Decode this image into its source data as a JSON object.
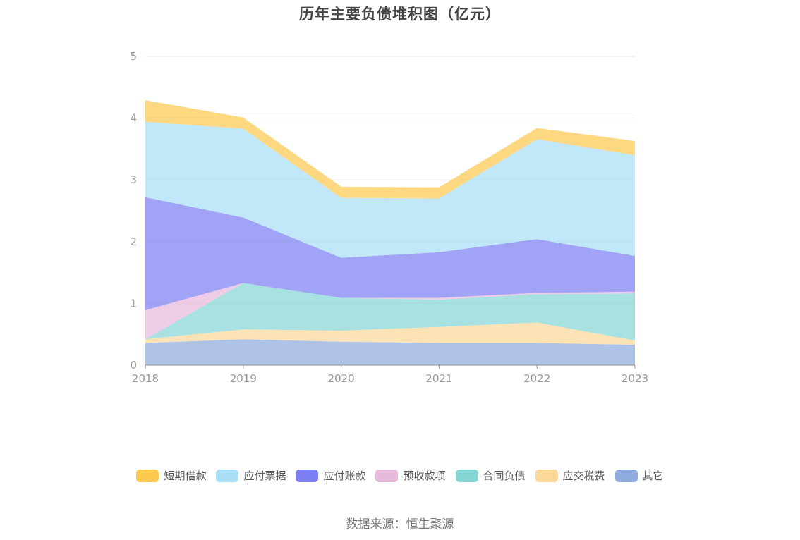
{
  "chart_data": {
    "type": "area",
    "stacked": true,
    "title": "历年主要负债堆积图（亿元）",
    "categories": [
      "2018",
      "2019",
      "2020",
      "2021",
      "2022",
      "2023"
    ],
    "ylim": [
      0,
      5
    ],
    "yticks": [
      "0",
      "1",
      "2",
      "3",
      "4",
      "5"
    ],
    "grid": true,
    "legend_position": "bottom",
    "series": [
      {
        "name": "其它",
        "color": "#8faadc",
        "values": [
          0.36,
          0.42,
          0.38,
          0.36,
          0.36,
          0.33
        ]
      },
      {
        "name": "应交税费",
        "color": "#fbd89a",
        "values": [
          0.06,
          0.16,
          0.18,
          0.26,
          0.33,
          0.07
        ]
      },
      {
        "name": "合同负债",
        "color": "#86d5d5",
        "values": [
          0.0,
          0.75,
          0.53,
          0.44,
          0.46,
          0.76
        ]
      },
      {
        "name": "预收款项",
        "color": "#e7b9db",
        "values": [
          0.47,
          0.0,
          0.0,
          0.03,
          0.02,
          0.03
        ]
      },
      {
        "name": "应付账款",
        "color": "#7d80f4",
        "values": [
          1.83,
          1.06,
          0.65,
          0.74,
          0.87,
          0.58
        ]
      },
      {
        "name": "应付票据",
        "color": "#a9dff6",
        "values": [
          1.22,
          1.44,
          0.97,
          0.87,
          1.62,
          1.63
        ]
      },
      {
        "name": "短期借款",
        "color": "#fdc94f",
        "values": [
          0.35,
          0.18,
          0.18,
          0.18,
          0.18,
          0.23
        ]
      }
    ]
  },
  "legend_order": [
    "短期借款",
    "应付票据",
    "应付账款",
    "预收款项",
    "合同负债",
    "应交税费",
    "其它"
  ],
  "source_text": "数据来源：恒生聚源"
}
